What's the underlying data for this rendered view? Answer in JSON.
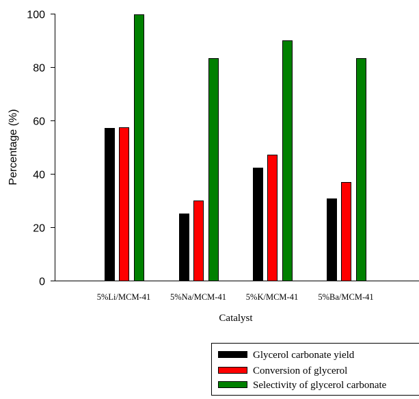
{
  "chart_data": {
    "type": "bar",
    "categories": [
      "5%Li/MCM-41",
      "5%Na/MCM-41",
      "5%K/MCM-41",
      "5%Ba/MCM-41"
    ],
    "series": [
      {
        "name": "Glycerol carbonate yield",
        "values": [
          57.2,
          25.1,
          42.3,
          30.8
        ],
        "color": "#000000"
      },
      {
        "name": "Conversion of glycerol",
        "values": [
          57.4,
          30.1,
          47.1,
          37.0
        ],
        "color": "#ff0000"
      },
      {
        "name": "Selectivity of glycerol carbonate",
        "values": [
          99.8,
          83.4,
          90.1,
          83.4
        ],
        "color": "#008000"
      }
    ],
    "yticks": [
      "0",
      "20",
      "40",
      "60",
      "80",
      "100"
    ],
    "xlabel": "Catalyst",
    "ylabel": "Percentage (%)",
    "ylim": [
      0,
      100
    ],
    "grid": false,
    "legend_position": "bottom-right"
  }
}
